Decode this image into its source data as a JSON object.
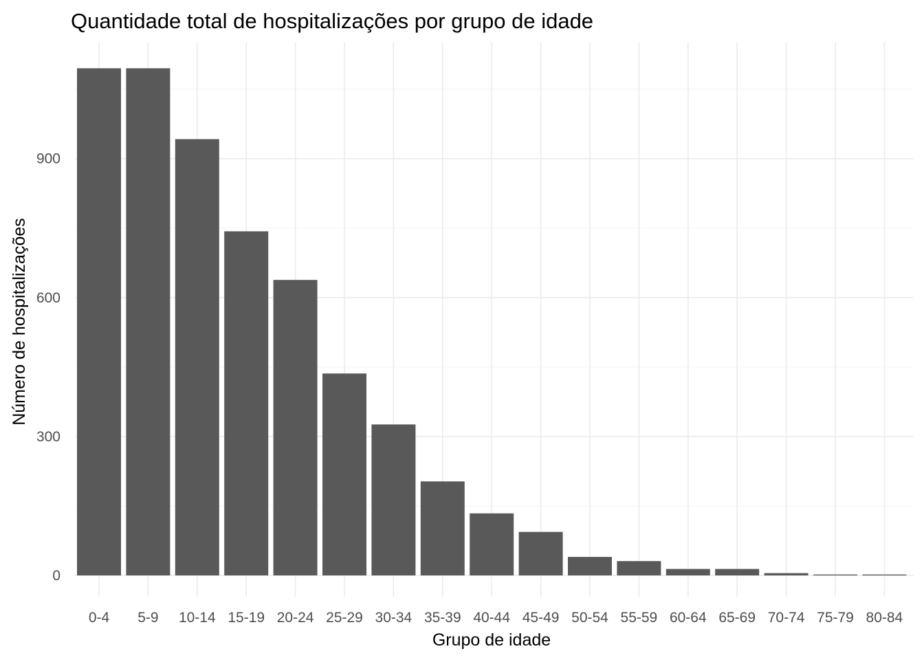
{
  "chart_data": {
    "type": "bar",
    "title": "Quantidade total de hospitalizações por grupo de idade",
    "xlabel": "Grupo de idade",
    "ylabel": "Número de hospitalizações",
    "categories": [
      "0-4",
      "5-9",
      "10-14",
      "15-19",
      "20-24",
      "25-29",
      "30-34",
      "35-39",
      "40-44",
      "45-49",
      "50-54",
      "55-59",
      "60-64",
      "65-69",
      "70-74",
      "75-79",
      "80-84"
    ],
    "values": [
      1095,
      1095,
      942,
      743,
      638,
      436,
      326,
      203,
      134,
      94,
      40,
      31,
      14,
      14,
      5,
      2,
      2
    ],
    "ylim": [
      -50,
      1150
    ],
    "yticks": [
      0,
      300,
      600,
      900
    ],
    "grid": true,
    "bar_color": "#595959",
    "grid_color": "#ebebeb"
  }
}
